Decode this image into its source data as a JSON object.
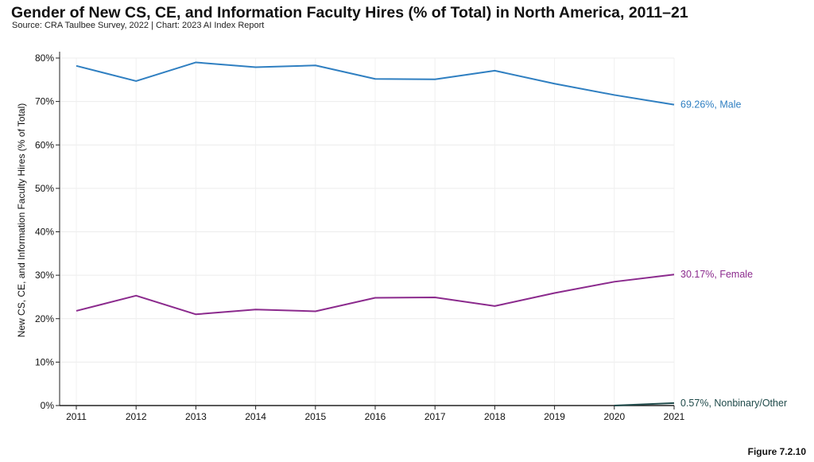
{
  "header": {
    "title": "Gender of New CS, CE, and Information Faculty Hires (% of Total) in North America, 2011–21",
    "subtitle": "Source: CRA Taulbee Survey, 2022 | Chart: 2023 AI Index Report"
  },
  "footer": {
    "figure_label": "Figure 7.2.10"
  },
  "chart_data": {
    "type": "line",
    "title": "Gender of New CS, CE, and Information Faculty Hires (% of Total) in North America, 2011–21",
    "xlabel": "",
    "ylabel": "New CS, CE, and Information Faculty Hires (% of Total)",
    "ylim": [
      0,
      80
    ],
    "grid": true,
    "categories": [
      "2011",
      "2012",
      "2013",
      "2014",
      "2015",
      "2016",
      "2017",
      "2018",
      "2019",
      "2020",
      "2021"
    ],
    "y_ticks": [
      0,
      10,
      20,
      30,
      40,
      50,
      60,
      70,
      80
    ],
    "y_tick_labels": [
      "0%",
      "10%",
      "20%",
      "30%",
      "40%",
      "50%",
      "60%",
      "70%",
      "80%"
    ],
    "series": [
      {
        "name": "Male",
        "color": "#2f7fc1",
        "end_label": "69.26%, Male",
        "values": [
          78.2,
          74.7,
          79.0,
          77.9,
          78.3,
          75.2,
          75.1,
          77.1,
          74.1,
          71.5,
          69.26
        ]
      },
      {
        "name": "Female",
        "color": "#8b2a8d",
        "end_label": "30.17%, Female",
        "values": [
          21.8,
          25.3,
          21.0,
          22.1,
          21.7,
          24.8,
          24.9,
          22.9,
          25.9,
          28.5,
          30.17
        ]
      },
      {
        "name": "Nonbinary/Other",
        "color": "#1f4a4a",
        "end_label": "0.57%,  Nonbinary/Other",
        "values": [
          null,
          null,
          null,
          null,
          null,
          null,
          null,
          null,
          null,
          0.0,
          0.57
        ]
      }
    ]
  }
}
